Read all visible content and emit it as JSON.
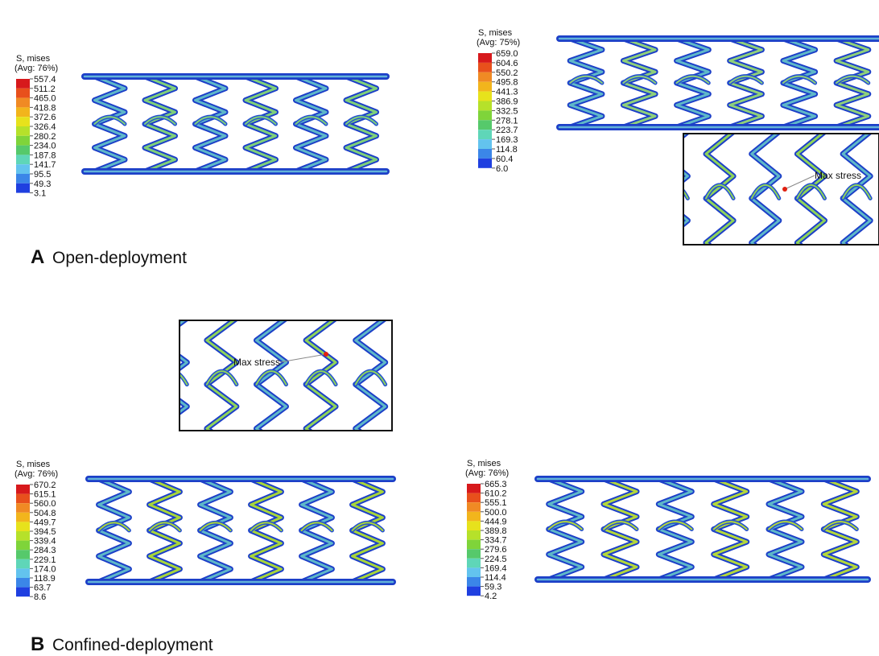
{
  "panels": [
    {
      "label": "A",
      "caption": "Open-deployment",
      "plots": [
        {
          "legend": {
            "title": "S, mises",
            "subtitle": "(Avg: 76%)",
            "values": [
              "557.4",
              "511.2",
              "465.0",
              "418.8",
              "372.6",
              "326.4",
              "280.2",
              "234.0",
              "187.8",
              "141.7",
              "95.5",
              "49.3",
              "3.1"
            ]
          }
        },
        {
          "legend": {
            "title": "S, mises",
            "subtitle": "(Avg: 75%)",
            "values": [
              "659.0",
              "604.6",
              "550.2",
              "495.8",
              "441.3",
              "386.9",
              "332.5",
              "278.1",
              "223.7",
              "169.3",
              "114.8",
              "60.4",
              "6.0"
            ]
          }
        }
      ],
      "insets": [
        {
          "annotation": "Max stress"
        }
      ]
    },
    {
      "label": "B",
      "caption": "Confined-deployment",
      "plots": [
        {
          "legend": {
            "title": "S, mises",
            "subtitle": "(Avg: 76%)",
            "values": [
              "670.2",
              "615.1",
              "560.0",
              "504.8",
              "449.7",
              "394.5",
              "339.4",
              "284.3",
              "229.1",
              "174.0",
              "118.9",
              "63.7",
              "8.6"
            ]
          }
        },
        {
          "legend": {
            "title": "S, mises",
            "subtitle": "(Avg: 76%)",
            "values": [
              "665.3",
              "610.2",
              "555.1",
              "500.0",
              "444.9",
              "389.8",
              "334.7",
              "279.6",
              "224.5",
              "169.4",
              "114.4",
              "59.3",
              "4.2"
            ]
          }
        }
      ],
      "insets": [
        {
          "annotation": "Max stress"
        }
      ]
    }
  ]
}
